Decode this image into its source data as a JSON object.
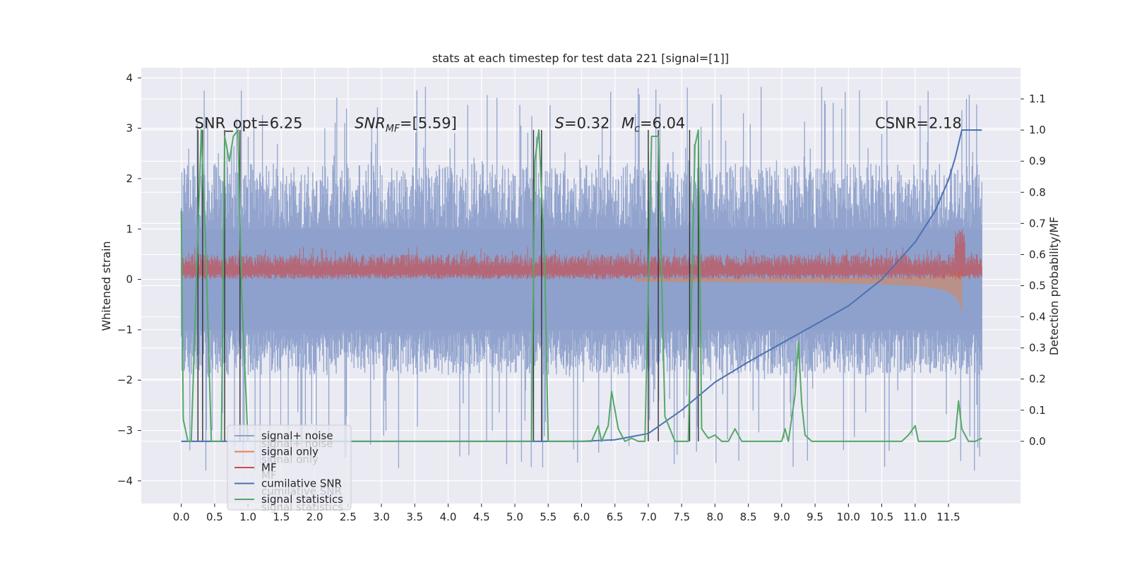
{
  "chart_data": {
    "type": "line",
    "title": "stats at each timestep for test data 221 [signal=[1]]",
    "xlabel": "",
    "ylabel": "Whitened strain",
    "ylabel_right": "Detection probability/MF",
    "xlim": [
      -0.6,
      12.58
    ],
    "ylim": [
      -4.45,
      4.2
    ],
    "ylim_right": [
      -0.2,
      1.2
    ],
    "x_ticks": [
      0.0,
      0.5,
      1.0,
      1.5,
      2.0,
      2.5,
      3.0,
      3.5,
      4.0,
      4.5,
      5.0,
      5.5,
      6.0,
      6.5,
      7.0,
      7.5,
      8.0,
      8.5,
      9.0,
      9.5,
      10.0,
      10.5,
      11.0,
      11.5
    ],
    "x_tick_labels": [
      "0.0",
      "0.5",
      "1.0",
      "1.5",
      "2.0",
      "2.5",
      "3.0",
      "3.5",
      "4.0",
      "4.5",
      "5.0",
      "5.5",
      "6.0",
      "6.5",
      "7.0",
      "7.5",
      "8.0",
      "8.5",
      "9.0",
      "9.5",
      "10.0",
      "10.5",
      "11.0",
      "11.5"
    ],
    "y_ticks": [
      4,
      3,
      2,
      1,
      0,
      -1,
      -2,
      -3,
      -4
    ],
    "y_tick_labels": [
      "4",
      "3",
      "2",
      "1",
      "0",
      "−1",
      "−2",
      "−3",
      "−4"
    ],
    "y_right_ticks": [
      1.1,
      1.0,
      0.9,
      0.8,
      0.7,
      0.6,
      0.5,
      0.4,
      0.3,
      0.2,
      0.1,
      0.0
    ],
    "y_right_tick_labels": [
      "1.1",
      "1.0",
      "0.9",
      "0.8",
      "0.7",
      "0.6",
      "0.5",
      "0.4",
      "0.3",
      "0.2",
      "0.1",
      "0.0"
    ],
    "grid": true,
    "legend_position": "lower-left",
    "annotations": [
      {
        "text": "SNR_opt=6.25",
        "x": 0.2,
        "y": 3.0
      },
      {
        "text": "SNR_MF=[5.59]",
        "x": 2.6,
        "y": 3.0,
        "math": true
      },
      {
        "text": "S=0.32",
        "x": 5.6,
        "y": 3.0,
        "math": true
      },
      {
        "text": "M_c=6.04",
        "x": 6.6,
        "y": 3.0,
        "math": true
      },
      {
        "text": "CSNR=2.18",
        "x": 10.4,
        "y": 3.0
      }
    ],
    "series": [
      {
        "name": "signal+ noise",
        "color": "#8da0cb",
        "axis": "left",
        "style": "noise",
        "x_range": [
          0.0,
          12.0
        ],
        "band": {
          "low": -1.9,
          "high": 2.3,
          "min": -3.8,
          "max": 3.85
        }
      },
      {
        "name": "signal only",
        "color": "#dd8452",
        "axis": "left",
        "style": "chirp",
        "x_range": [
          0.0,
          11.7
        ],
        "peak_amplitude": 0.65
      },
      {
        "name": "MF",
        "color": "#c44e52",
        "axis": "left",
        "style": "mf",
        "x_range": [
          0.0,
          12.0
        ],
        "band": {
          "low": 0.0,
          "high": 0.5,
          "max": 1.0
        }
      },
      {
        "name": "cumilative SNR",
        "color": "#4c72b0",
        "axis": "right",
        "x": [
          0.0,
          6.0,
          6.5,
          7.0,
          7.5,
          8.0,
          8.5,
          9.0,
          9.5,
          10.0,
          10.5,
          11.0,
          11.3,
          11.5,
          11.6,
          11.7,
          12.0
        ],
        "y": [
          0.0,
          0.0,
          0.005,
          0.025,
          0.1,
          0.19,
          0.255,
          0.315,
          0.375,
          0.435,
          0.52,
          0.64,
          0.74,
          0.84,
          0.91,
          1.0,
          1.0
        ]
      },
      {
        "name": "signal statistics",
        "color": "#55a868",
        "axis": "right",
        "x": [
          0.0,
          0.03,
          0.1,
          0.15,
          0.3,
          0.37,
          0.45,
          0.55,
          0.6,
          0.65,
          0.72,
          0.78,
          0.85,
          0.9,
          1.0,
          1.5,
          2.0,
          3.0,
          4.0,
          5.0,
          5.25,
          5.3,
          5.36,
          5.45,
          5.5,
          5.6,
          6.0,
          6.15,
          6.25,
          6.3,
          6.4,
          6.45,
          6.55,
          6.65,
          6.75,
          6.85,
          6.95,
          7.05,
          7.15,
          7.25,
          7.4,
          7.55,
          7.6,
          7.7,
          7.75,
          7.8,
          7.9,
          8.0,
          8.1,
          8.2,
          8.3,
          8.4,
          9.0,
          9.05,
          9.1,
          9.2,
          9.25,
          9.3,
          9.35,
          9.45,
          9.6,
          10.0,
          10.5,
          10.8,
          10.9,
          11.0,
          11.05,
          11.15,
          11.4,
          11.5,
          11.6,
          11.65,
          11.7,
          11.8,
          11.9,
          12.0
        ],
        "y": [
          0.74,
          0.07,
          0.0,
          0.0,
          1.0,
          0.6,
          0.0,
          0.0,
          0.0,
          0.98,
          0.9,
          0.98,
          1.0,
          0.5,
          0.0,
          0.0,
          0.0,
          0.0,
          0.0,
          0.0,
          0.0,
          0.9,
          1.0,
          0.55,
          0.0,
          0.0,
          0.0,
          0.0,
          0.05,
          0.0,
          0.05,
          0.16,
          0.04,
          0.0,
          0.01,
          0.0,
          0.0,
          0.98,
          0.98,
          0.08,
          0.0,
          0.0,
          0.0,
          0.95,
          1.0,
          0.04,
          0.01,
          0.02,
          0.0,
          0.0,
          0.04,
          0.0,
          0.0,
          0.04,
          0.0,
          0.15,
          0.32,
          0.12,
          0.02,
          0.0,
          0.0,
          0.0,
          0.0,
          0.0,
          0.02,
          0.05,
          0.0,
          0.0,
          0.0,
          0.0,
          0.01,
          0.13,
          0.04,
          0.0,
          0.0,
          0.01
        ]
      }
    ],
    "vlines": [
      0.25,
      0.32,
      0.65,
      0.88,
      5.28,
      5.4,
      7.0,
      7.15,
      7.62,
      7.75
    ],
    "vline_color": "#333333"
  },
  "legend": {
    "entries": [
      {
        "label": "signal+ noise",
        "color": "#8da0cb"
      },
      {
        "label": "signal only",
        "color": "#dd8452"
      },
      {
        "label": "MF",
        "color": "#c44e52"
      },
      {
        "label": "cumilative SNR",
        "color": "#4c72b0"
      },
      {
        "label": "signal statistics",
        "color": "#55a868"
      }
    ],
    "ghost_entries": [
      "signal+ noise",
      "signal only",
      "MF",
      "cumilative SNR",
      "signal statistics"
    ]
  },
  "colors": {
    "background": "#ffffff",
    "plot_area": "#eaeaf2",
    "grid": "#ffffff",
    "text": "#262626"
  }
}
